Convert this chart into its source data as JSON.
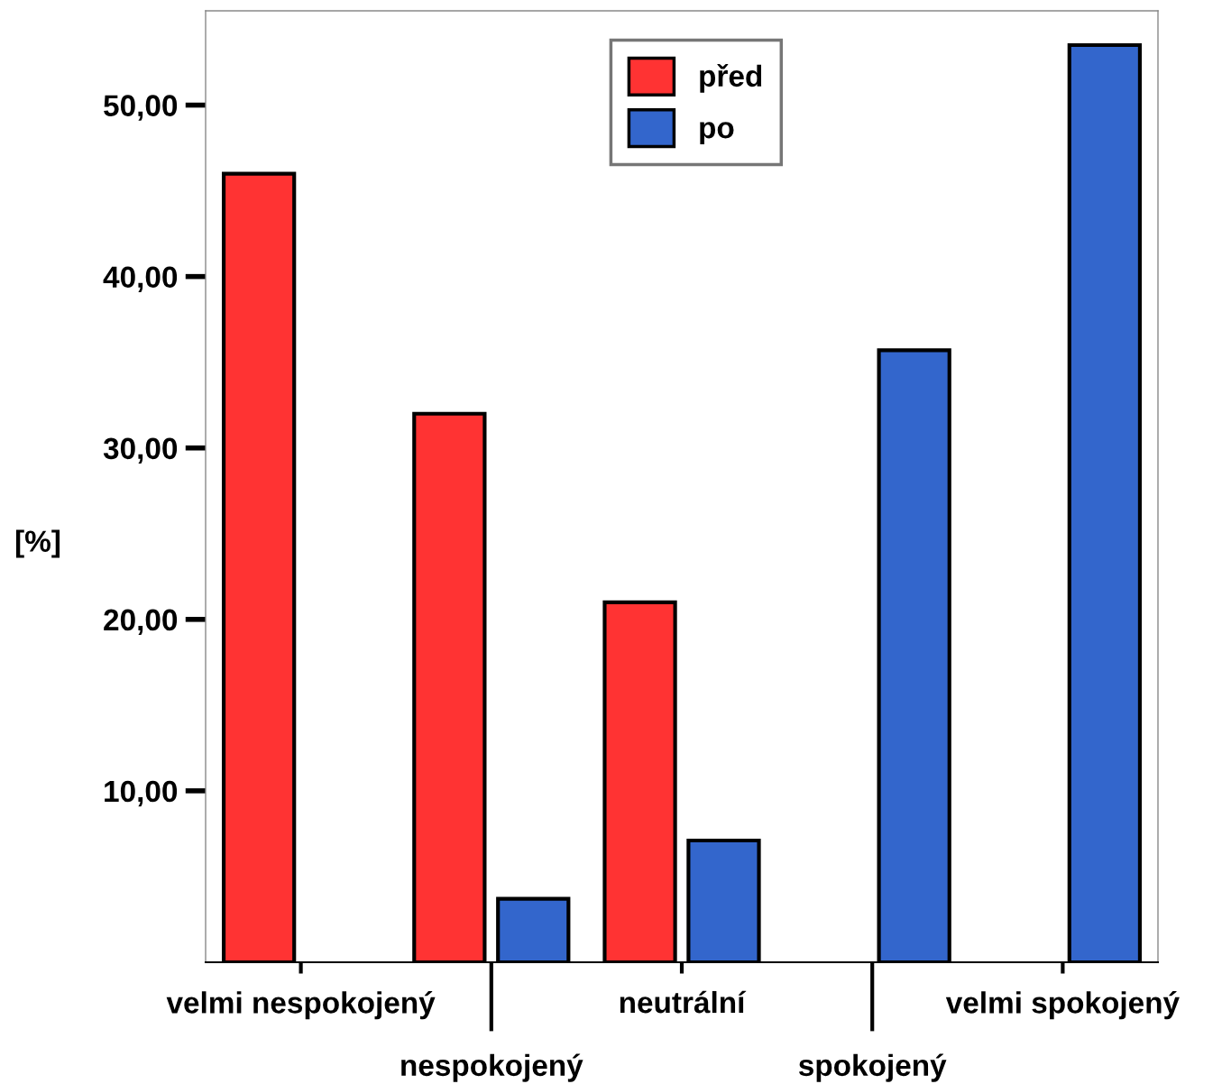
{
  "chart_data": {
    "type": "bar",
    "ylabel": "[%]",
    "categories": [
      "velmi nespokojený",
      "nespokojený",
      "neutrální",
      "spokojený",
      "velmi spokojený"
    ],
    "series": [
      {
        "name": "před",
        "color": "#ff3333",
        "values": [
          46.0,
          32.0,
          21.0,
          null,
          null
        ]
      },
      {
        "name": "po",
        "color": "#3366cc",
        "values": [
          null,
          3.7,
          7.1,
          35.7,
          53.5
        ]
      }
    ],
    "ylim": [
      0,
      55.5
    ],
    "yticks": [
      {
        "value": 10,
        "label": "10,00"
      },
      {
        "value": 20,
        "label": "20,00"
      },
      {
        "value": 30,
        "label": "30,00"
      },
      {
        "value": 40,
        "label": "40,00"
      },
      {
        "value": 50,
        "label": "50,00"
      }
    ],
    "grid": false,
    "legend": "top"
  }
}
